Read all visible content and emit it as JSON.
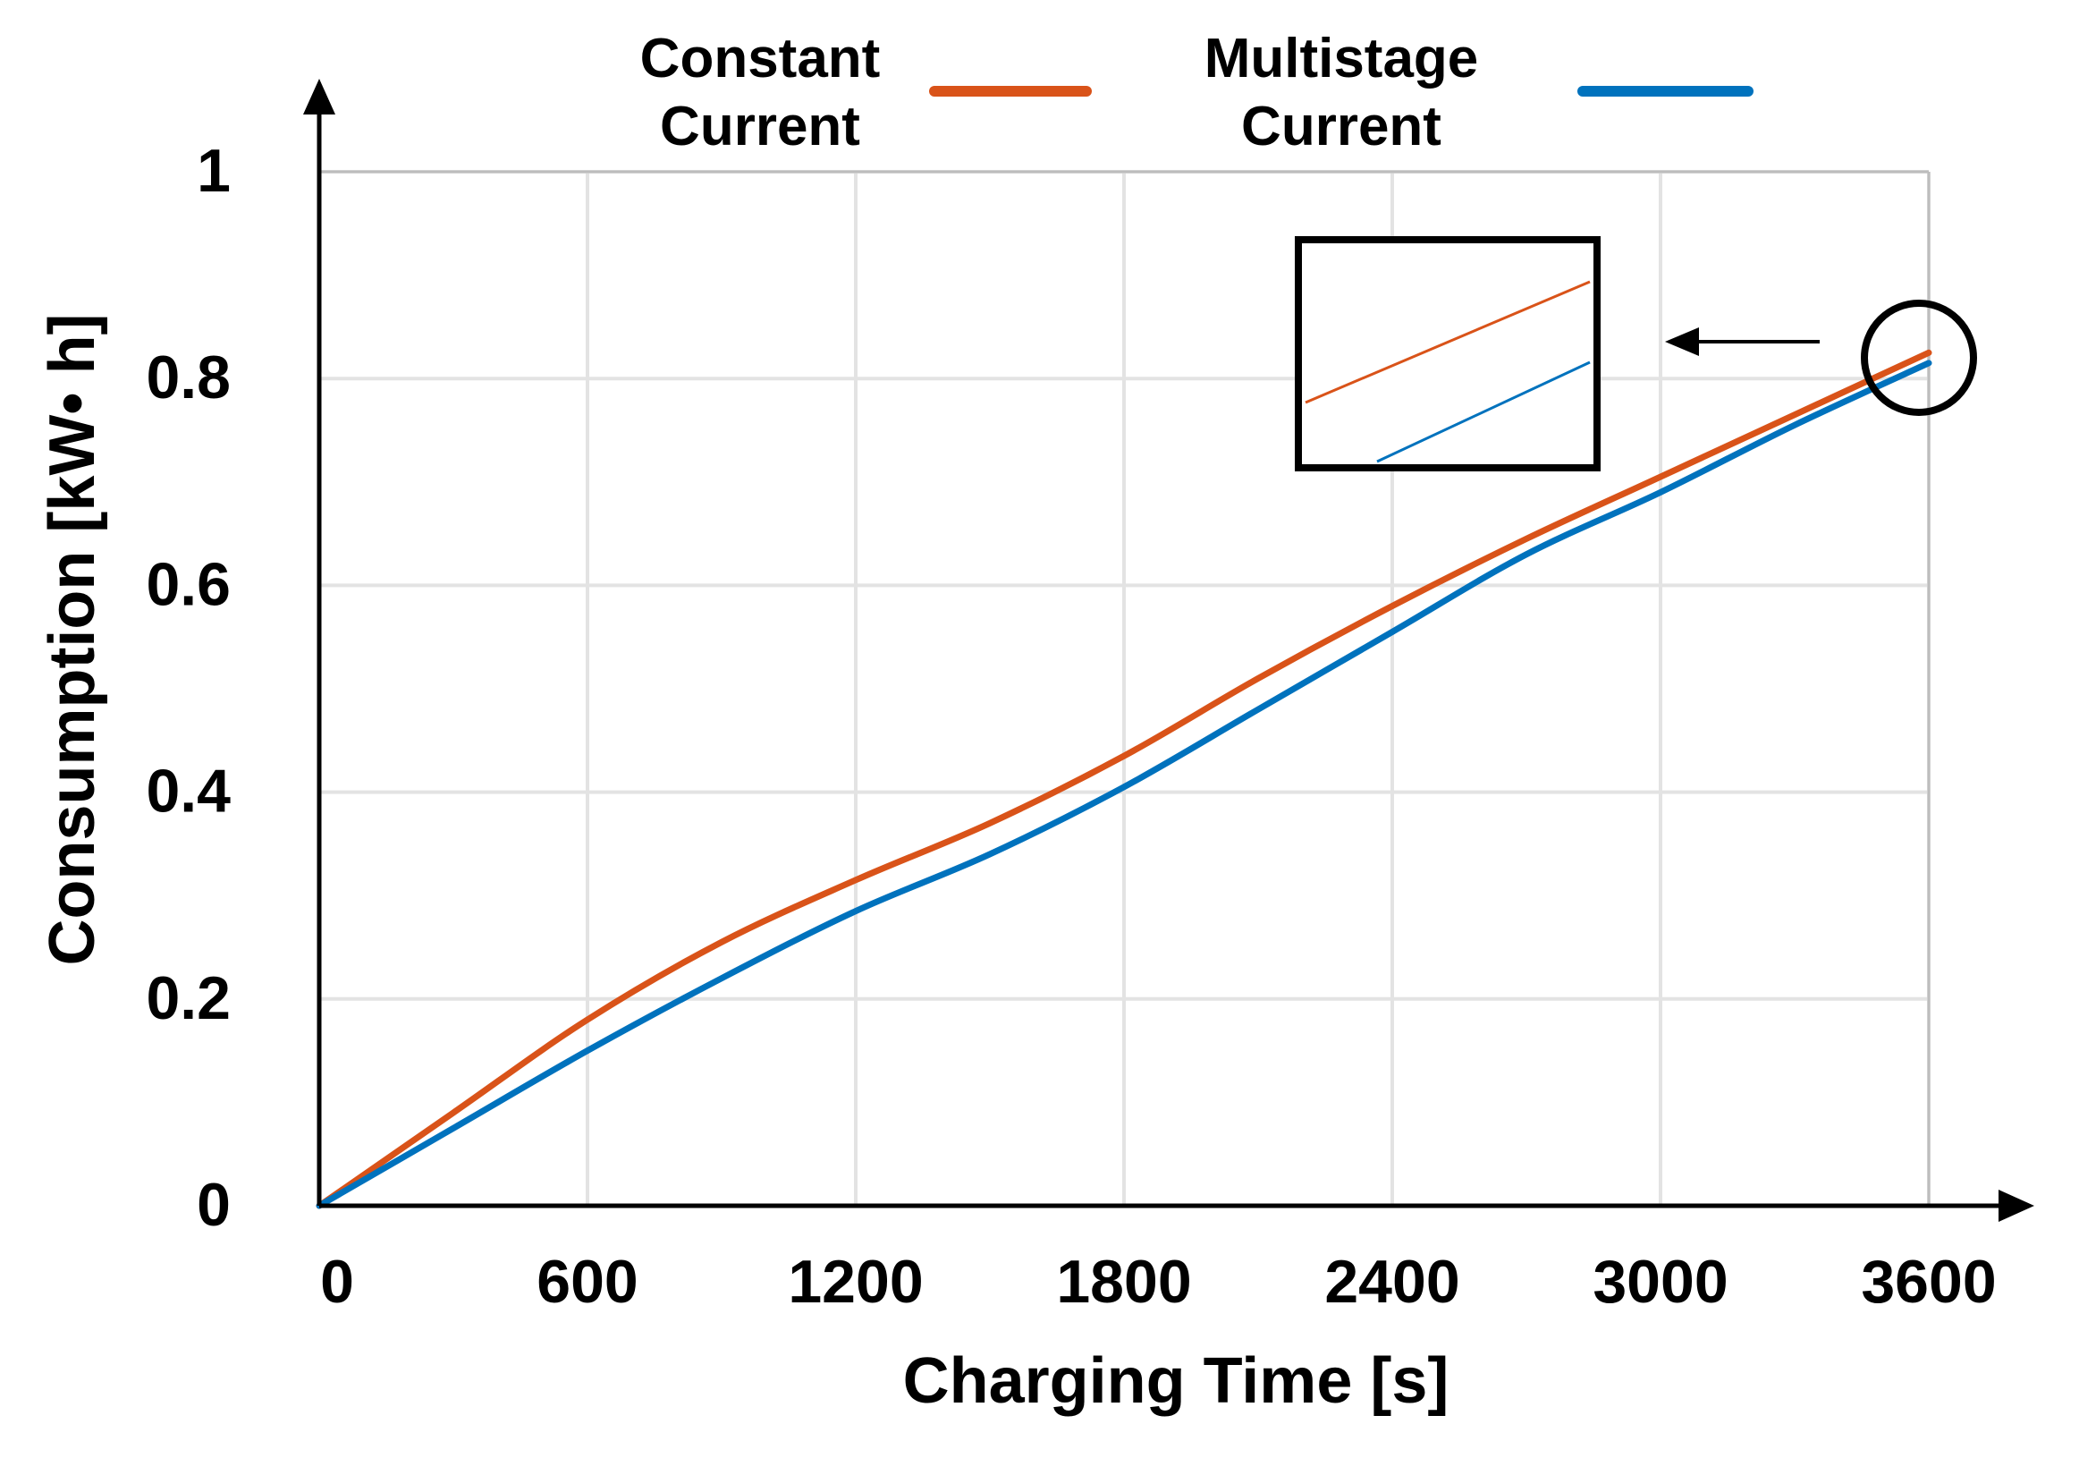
{
  "chart_data": {
    "type": "line",
    "title": "",
    "xlabel": "Charging Time [s]",
    "ylabel": "Consumption [kW• h]",
    "xlim": [
      0,
      3600
    ],
    "ylim": [
      0,
      1
    ],
    "xticks": [
      0,
      600,
      1200,
      1800,
      2400,
      3000,
      3600
    ],
    "yticks": [
      0,
      0.2,
      0.4,
      0.6,
      0.8,
      1
    ],
    "xtick_labels": [
      "0",
      "600",
      "1200",
      "1800",
      "2400",
      "3000",
      "3600"
    ],
    "ytick_labels": [
      "0",
      "0.2",
      "0.4",
      "0.6",
      "0.8",
      "1"
    ],
    "grid": true,
    "legend_position": "top",
    "series": [
      {
        "name": "Constant Current",
        "legend_lines": [
          "Constant",
          "Current"
        ],
        "color": "#D95319",
        "x": [
          0,
          300,
          600,
          900,
          1200,
          1500,
          1800,
          2100,
          2400,
          2700,
          3000,
          3300,
          3600
        ],
        "y": [
          0,
          0.09,
          0.18,
          0.255,
          0.315,
          0.37,
          0.435,
          0.51,
          0.58,
          0.645,
          0.705,
          0.765,
          0.825
        ]
      },
      {
        "name": "Multistage Current",
        "legend_lines": [
          "Multistage",
          "Current"
        ],
        "color": "#0072BD",
        "x": [
          0,
          300,
          600,
          900,
          1200,
          1500,
          1800,
          2100,
          2400,
          2700,
          3000,
          3300,
          3600
        ],
        "y": [
          0,
          0.075,
          0.15,
          0.22,
          0.285,
          0.34,
          0.405,
          0.48,
          0.555,
          0.63,
          0.69,
          0.755,
          0.815
        ]
      }
    ],
    "annotations": [
      {
        "type": "zoom-inset",
        "description": "magnified view of curves near x=3600"
      },
      {
        "type": "circle",
        "at_x": 3600,
        "at_y": 0.82
      },
      {
        "type": "arrow",
        "direction": "left"
      }
    ]
  }
}
